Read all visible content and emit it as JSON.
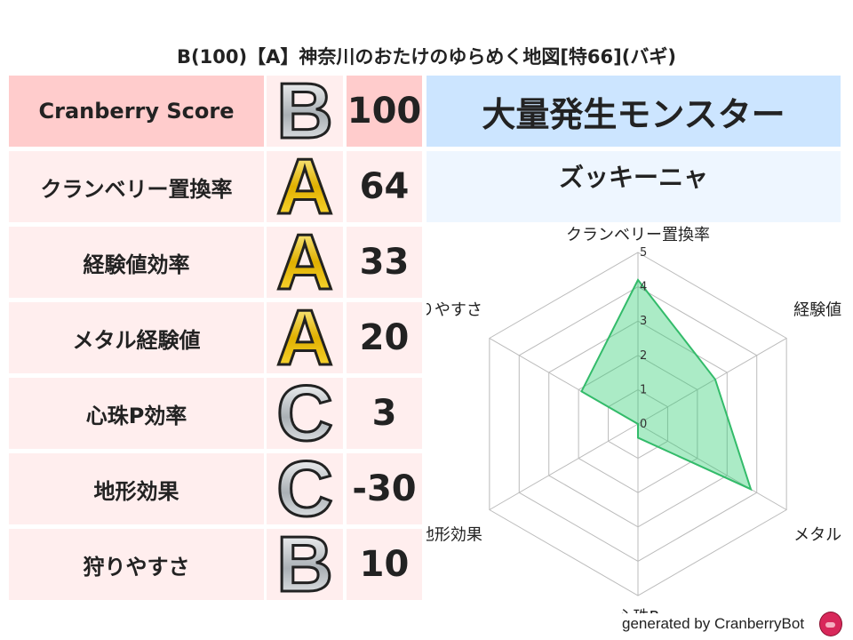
{
  "title": "B(100)【A】神奈川のおたけのゆらめく地図[特66](バギ)",
  "score_header": {
    "label": "Cranberry Score",
    "grade": "B",
    "score": "100"
  },
  "rows": [
    {
      "label": "クランベリー置換率",
      "grade": "A",
      "score": "64"
    },
    {
      "label": "経験値効率",
      "grade": "A",
      "score": "33"
    },
    {
      "label": "メタル経験値",
      "grade": "A",
      "score": "20"
    },
    {
      "label": "心珠P効率",
      "grade": "C",
      "score": "3"
    },
    {
      "label": "地形効果",
      "grade": "C",
      "score": "-30"
    },
    {
      "label": "狩りやすさ",
      "grade": "B",
      "score": "10"
    }
  ],
  "monster": {
    "header": "大量発生モンスター",
    "name": "ズッキーニャ"
  },
  "chart_data": {
    "type": "radar",
    "axes": [
      "クランベリー置換率",
      "経験値",
      "メタル",
      "心珠P",
      "地形効果",
      "狩りやすさ"
    ],
    "values": [
      4.2,
      2.6,
      3.8,
      0.4,
      0,
      1.9
    ],
    "rlim": [
      0,
      5
    ],
    "ticks": [
      "0",
      "1",
      "2",
      "3",
      "4",
      "5"
    ],
    "grid": true,
    "colors": {
      "fill": "#2ecc71",
      "stroke": "#33bb6a",
      "grid": "#bbbbbb"
    }
  },
  "footer": "generated by CranberryBot",
  "colors": {
    "header_pink": "#ffcccc",
    "row_pink": "#ffeeee",
    "header_blue": "#cce5ff",
    "sub_blue": "#eef6ff"
  }
}
